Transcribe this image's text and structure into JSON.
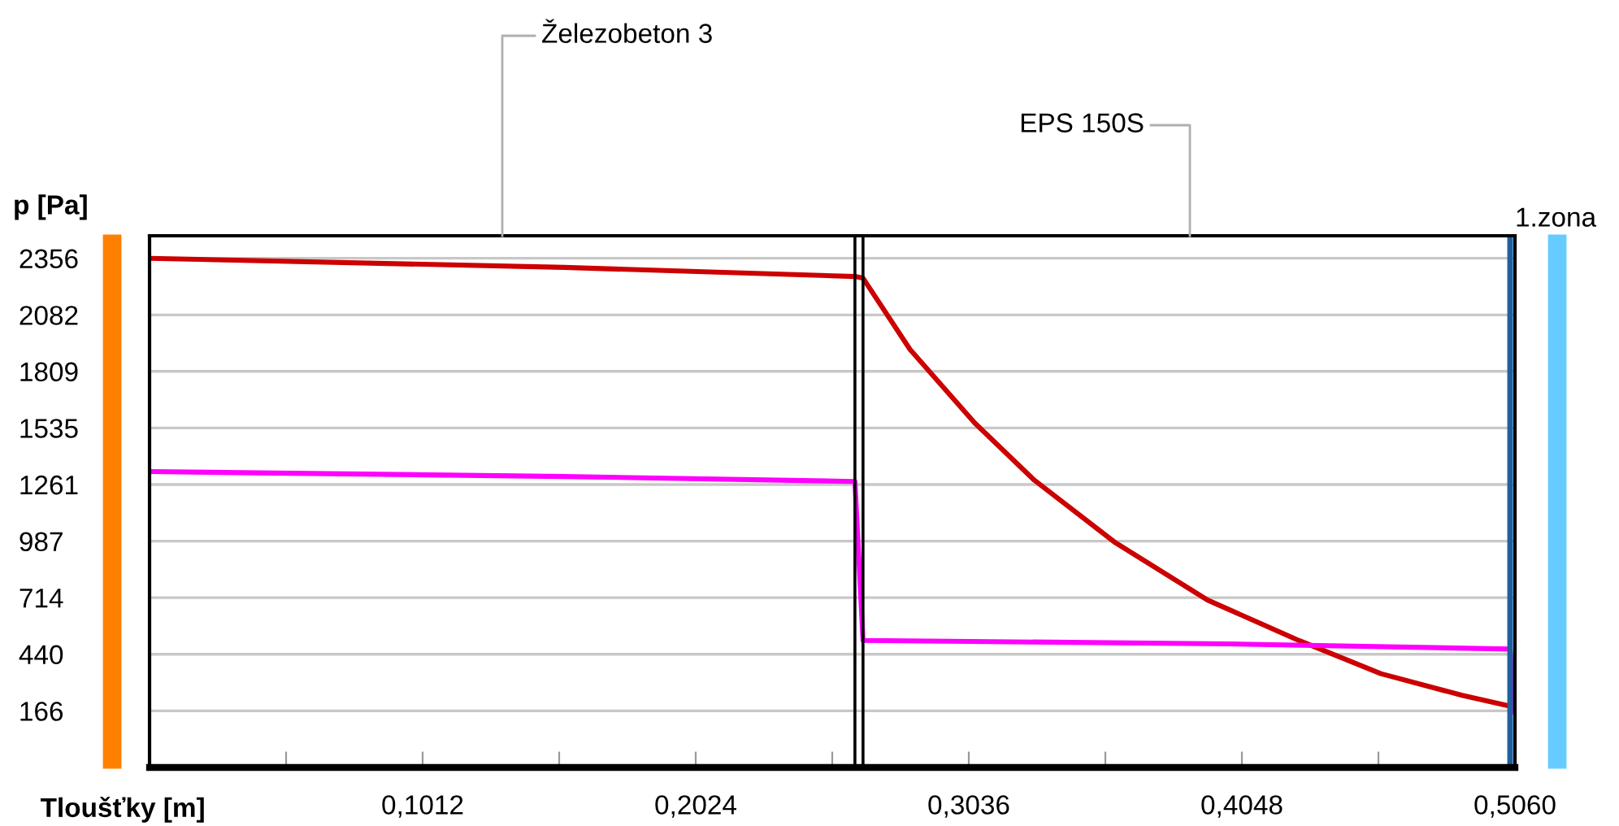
{
  "chart_data": {
    "type": "line",
    "xlabel": "Tloušťky [m]",
    "ylabel": "p [Pa]",
    "xlim": [
      0,
      0.506
    ],
    "ylim": [
      -108,
      2465
    ],
    "xticks": [
      {
        "value": 0.0506,
        "label": null
      },
      {
        "value": 0.1012,
        "label": "0,1012"
      },
      {
        "value": 0.1518,
        "label": null
      },
      {
        "value": 0.2024,
        "label": "0,2024"
      },
      {
        "value": 0.253,
        "label": null
      },
      {
        "value": 0.3036,
        "label": "0,3036"
      },
      {
        "value": 0.3542,
        "label": null
      },
      {
        "value": 0.4048,
        "label": "0,4048"
      },
      {
        "value": 0.4554,
        "label": null
      },
      {
        "value": 0.506,
        "label": "0,5060"
      }
    ],
    "yticks": [
      166,
      440,
      714,
      987,
      1261,
      1535,
      1809,
      2082,
      2356
    ],
    "grid": "y",
    "legend": false,
    "marker": "none",
    "line_style": "solid",
    "series": [
      {
        "color": "#cc0000",
        "x": [
          0,
          0.1535,
          0.2614,
          0.2644,
          0.2818,
          0.3058,
          0.3279,
          0.358,
          0.3921,
          0.4262,
          0.4563,
          0.4864,
          0.5045
        ],
        "values": [
          2356,
          2312,
          2268,
          2260,
          1915,
          1559,
          1282,
          979,
          702,
          505,
          346,
          241,
          188
        ]
      },
      {
        "color": "#ff00ff",
        "x": [
          0,
          0.1535,
          0.2614,
          0.2644,
          0.4,
          0.5042,
          0.506
        ],
        "values": [
          1324,
          1300,
          1276,
          507,
          490,
          465,
          161
        ]
      }
    ],
    "ref_lines": [
      {
        "axis": "x",
        "value": 0.2614,
        "color": "#000000"
      },
      {
        "axis": "x",
        "value": 0.2644,
        "color": "#000000"
      },
      {
        "axis": "x",
        "value": 0.5042,
        "color": "#1f5f9f"
      }
    ],
    "annotations": [
      "Železobeton 3",
      "EPS 150S",
      "1.zona"
    ]
  }
}
